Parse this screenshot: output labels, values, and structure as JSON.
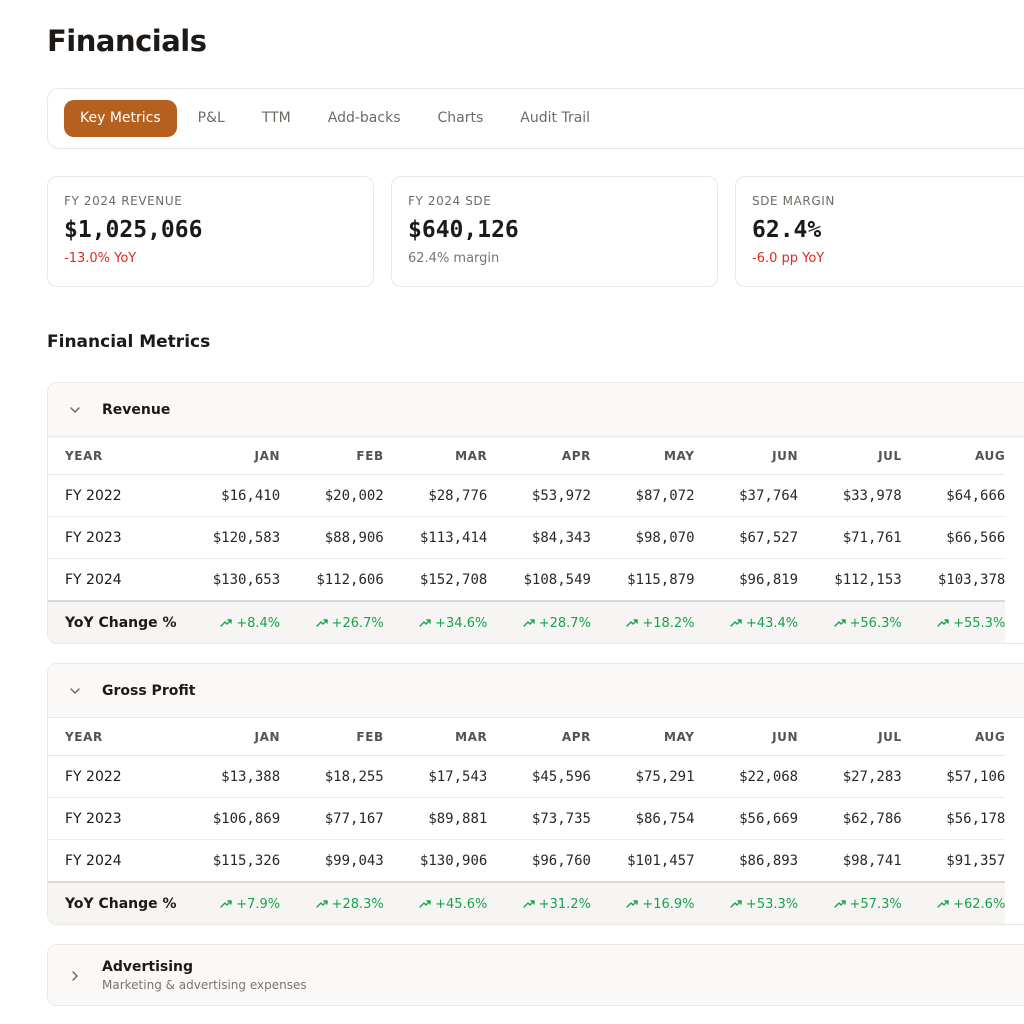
{
  "header": {
    "title": "Financials"
  },
  "tabs": [
    "Key Metrics",
    "P&L",
    "TTM",
    "Add-backs",
    "Charts",
    "Audit Trail"
  ],
  "active_tab": 0,
  "cards": [
    {
      "label": "FY 2024 REVENUE",
      "value": "$1,025,066",
      "note": "-13.0% YoY",
      "tone": "negative"
    },
    {
      "label": "FY 2024 SDE",
      "value": "$640,126",
      "note": "62.4% margin",
      "tone": "neutral"
    },
    {
      "label": "SDE MARGIN",
      "value": "62.4%",
      "note": "-6.0 pp YoY",
      "tone": "negative"
    }
  ],
  "section_title": "Financial Metrics",
  "sections": [
    {
      "title": "Revenue",
      "expanded": true,
      "columns": [
        "YEAR",
        "JAN",
        "FEB",
        "MAR",
        "APR",
        "MAY",
        "JUN",
        "JUL",
        "AUG"
      ],
      "rows": [
        {
          "year": "FY 2022",
          "cells": [
            "$16,410",
            "$20,002",
            "$28,776",
            "$53,972",
            "$87,072",
            "$37,764",
            "$33,978",
            "$64,666"
          ]
        },
        {
          "year": "FY 2023",
          "cells": [
            "$120,583",
            "$88,906",
            "$113,414",
            "$84,343",
            "$98,070",
            "$67,527",
            "$71,761",
            "$66,566"
          ]
        },
        {
          "year": "FY 2024",
          "cells": [
            "$130,653",
            "$112,606",
            "$152,708",
            "$108,549",
            "$115,879",
            "$96,819",
            "$112,153",
            "$103,378"
          ]
        }
      ],
      "yoy": {
        "label": "YoY Change %",
        "values": [
          "+8.4%",
          "+26.7%",
          "+34.6%",
          "+28.7%",
          "+18.2%",
          "+43.4%",
          "+56.3%",
          "+55.3%"
        ]
      }
    },
    {
      "title": "Gross Profit",
      "expanded": true,
      "columns": [
        "YEAR",
        "JAN",
        "FEB",
        "MAR",
        "APR",
        "MAY",
        "JUN",
        "JUL",
        "AUG"
      ],
      "rows": [
        {
          "year": "FY 2022",
          "cells": [
            "$13,388",
            "$18,255",
            "$17,543",
            "$45,596",
            "$75,291",
            "$22,068",
            "$27,283",
            "$57,106"
          ]
        },
        {
          "year": "FY 2023",
          "cells": [
            "$106,869",
            "$77,167",
            "$89,881",
            "$73,735",
            "$86,754",
            "$56,669",
            "$62,786",
            "$56,178"
          ]
        },
        {
          "year": "FY 2024",
          "cells": [
            "$115,326",
            "$99,043",
            "$130,906",
            "$96,760",
            "$101,457",
            "$86,893",
            "$98,741",
            "$91,357"
          ]
        }
      ],
      "yoy": {
        "label": "YoY Change %",
        "values": [
          "+7.9%",
          "+28.3%",
          "+45.6%",
          "+31.2%",
          "+16.9%",
          "+53.3%",
          "+57.3%",
          "+62.6%"
        ]
      }
    },
    {
      "title": "Advertising",
      "subtitle": "Marketing & advertising expenses",
      "expanded": false
    }
  ]
}
